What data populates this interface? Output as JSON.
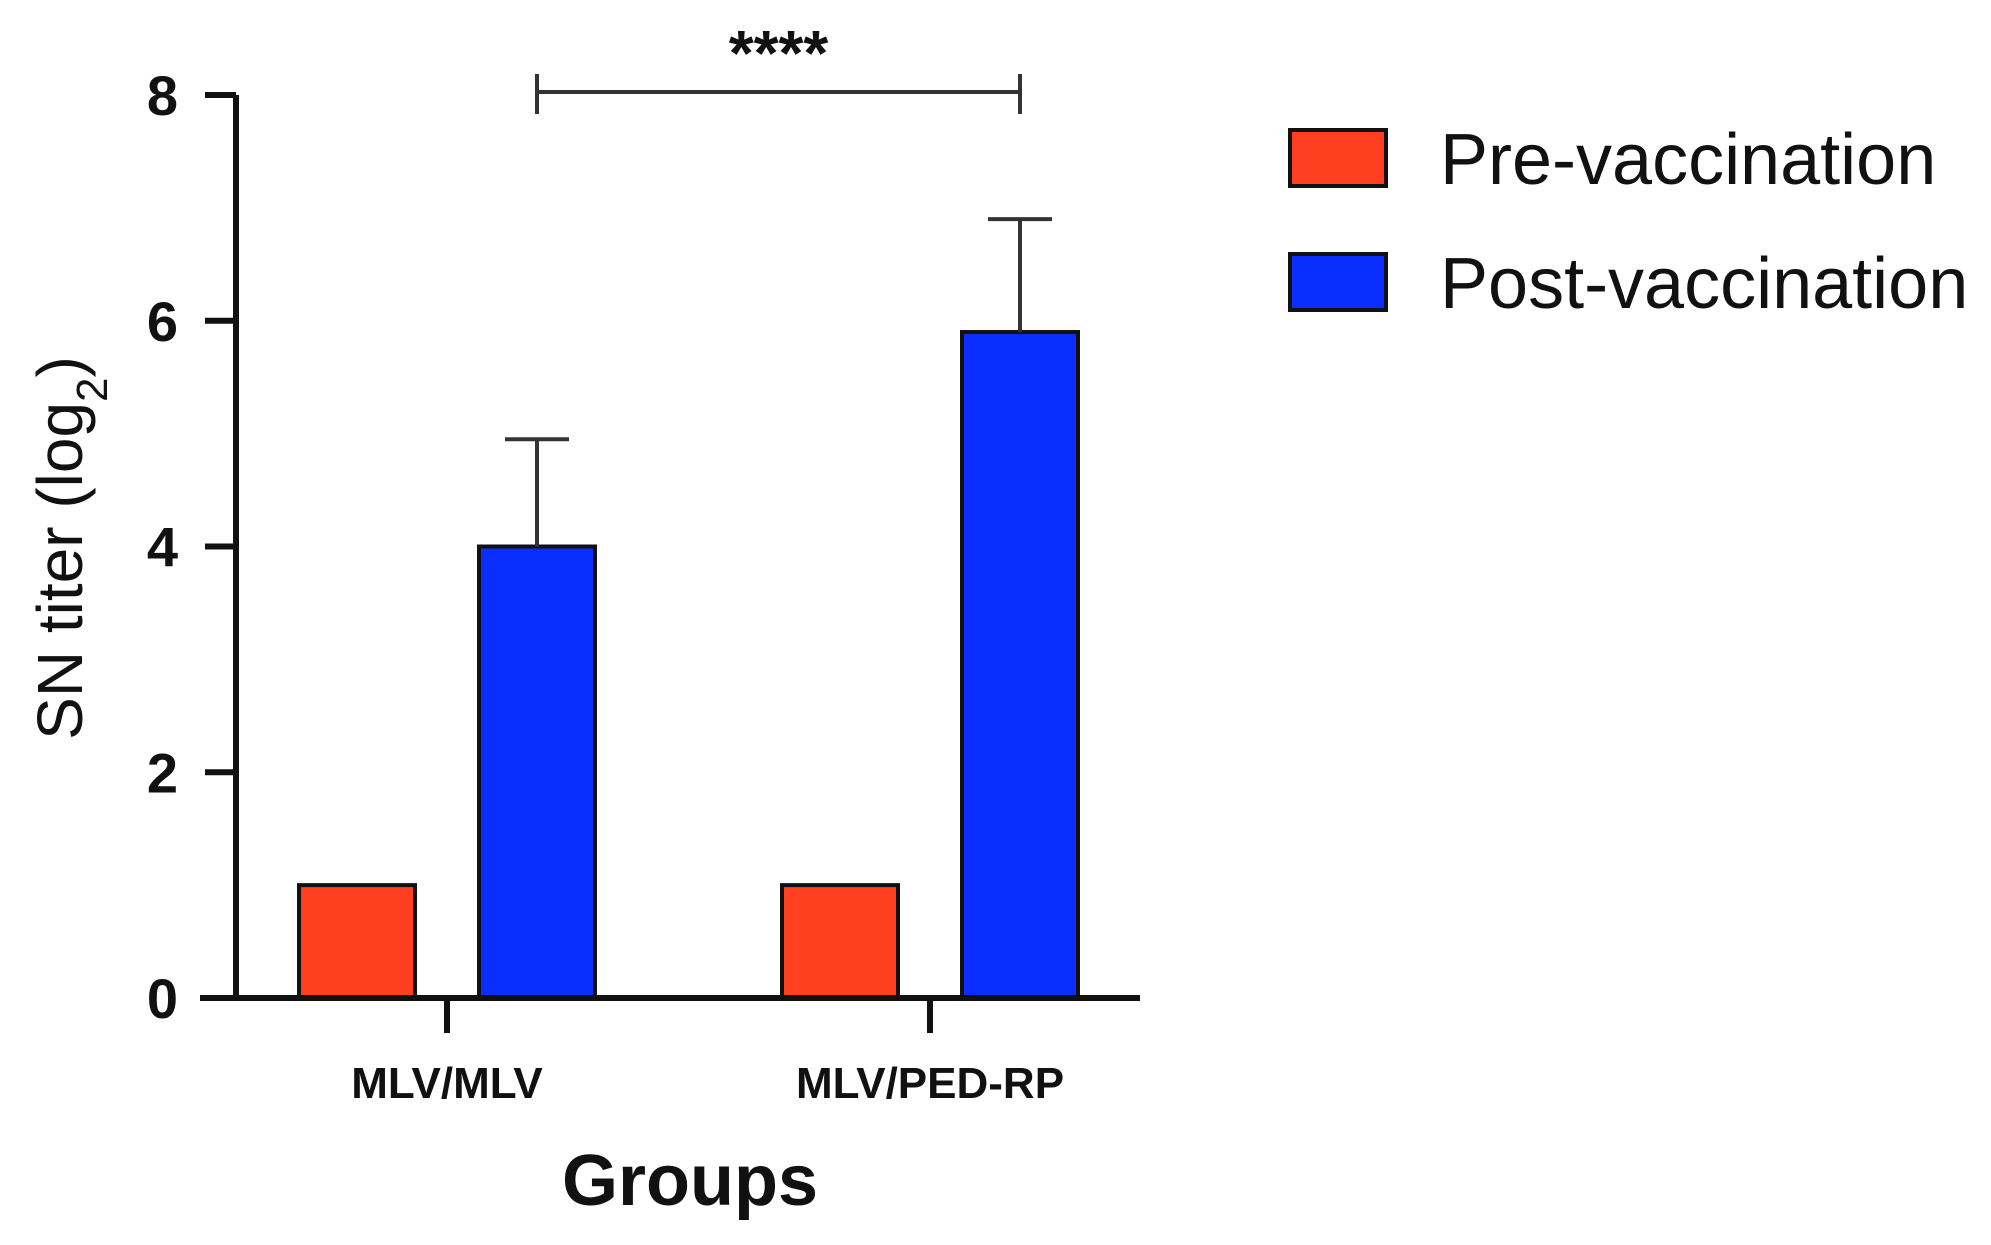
{
  "chart_data": {
    "type": "bar",
    "title": "",
    "xlabel": "Groups",
    "ylabel": "SN titer (log",
    "ylabel_subscript": "2",
    "ylabel_suffix": ")",
    "ylim": [
      0,
      8
    ],
    "yticks": [
      0,
      2,
      4,
      6,
      8
    ],
    "categories": [
      "MLV/MLV",
      "MLV/PED-RP"
    ],
    "series": [
      {
        "name": "Pre-vaccination",
        "color": "#FF3F1F",
        "values": [
          1,
          1
        ],
        "errors": [
          0,
          0
        ]
      },
      {
        "name": "Post-vaccination",
        "color": "#0A2EFF",
        "values": [
          4.0,
          5.9
        ],
        "errors": [
          0.95,
          1.0
        ]
      }
    ],
    "significance": {
      "label": "****",
      "from_category": 0,
      "to_category": 1
    },
    "grid": false,
    "legend": "right"
  }
}
